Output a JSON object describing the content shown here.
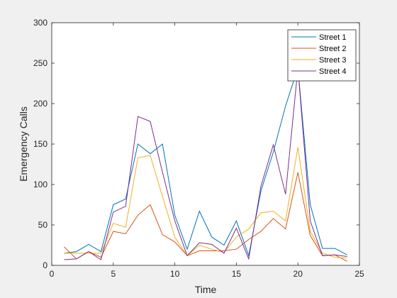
{
  "chart_data": {
    "type": "line",
    "title": "",
    "xlabel": "Time",
    "ylabel": "Emergency Calls",
    "xlim": [
      0,
      25
    ],
    "ylim": [
      0,
      300
    ],
    "xticks": [
      0,
      5,
      10,
      15,
      20,
      25
    ],
    "yticks": [
      0,
      50,
      100,
      150,
      200,
      250,
      300
    ],
    "grid": false,
    "legend_position": "top-right",
    "x": [
      1,
      2,
      3,
      4,
      5,
      6,
      7,
      8,
      9,
      10,
      11,
      12,
      13,
      14,
      15,
      16,
      17,
      18,
      19,
      20,
      21,
      22,
      23,
      24
    ],
    "series": [
      {
        "name": "Street 1",
        "color": "#0072BD",
        "values": [
          15,
          17,
          26,
          17,
          75,
          82,
          150,
          138,
          150,
          62,
          20,
          67,
          35,
          25,
          55,
          12,
          92,
          140,
          197,
          244,
          75,
          21,
          21,
          13
        ]
      },
      {
        "name": "Street 2",
        "color": "#D95319",
        "values": [
          23,
          8,
          17,
          10,
          42,
          39,
          62,
          75,
          38,
          29,
          12,
          18,
          18,
          18,
          20,
          32,
          42,
          58,
          45,
          115,
          37,
          12,
          13,
          5
        ]
      },
      {
        "name": "Street 3",
        "color": "#EDB120",
        "values": [
          15,
          15,
          15,
          15,
          52,
          47,
          133,
          136,
          85,
          35,
          12,
          25,
          20,
          16,
          35,
          45,
          65,
          67,
          55,
          146,
          42,
          15,
          10,
          9
        ]
      },
      {
        "name": "Street 4",
        "color": "#7E2F8E",
        "values": [
          7,
          8,
          17,
          7,
          66,
          73,
          184,
          178,
          115,
          55,
          12,
          28,
          26,
          15,
          46,
          8,
          98,
          149,
          88,
          244,
          55,
          12,
          13,
          11
        ]
      }
    ]
  }
}
